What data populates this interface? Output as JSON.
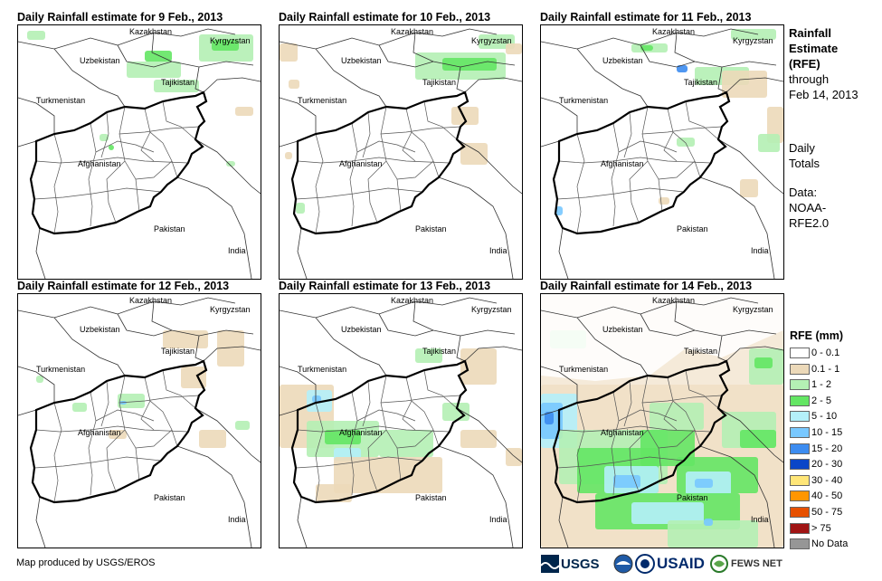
{
  "panels": [
    {
      "title": "Daily Rainfall estimate for 9 Feb., 2013",
      "labels": {
        "kazakhstan": "Kazakhstan",
        "kyrgyzstan": "Kyrgyzstan",
        "uzbekistan": "Uzbekistan",
        "tajikistan": "Tajikistan",
        "turkmenistan": "Turkmenistan",
        "afghanistan": "Afghanistan",
        "pakistan": "Pakistan",
        "india": "India"
      }
    },
    {
      "title": "Daily Rainfall estimate for 10 Feb., 2013",
      "labels": {
        "kazakhstan": "Kazakhstan",
        "kyrgyzstan": "Kyrgyzstan",
        "uzbekistan": "Uzbekistan",
        "tajikistan": "Tajikistan",
        "turkmenistan": "Turkmenistan",
        "afghanistan": "Afghanistan",
        "pakistan": "Pakistan",
        "india": "India"
      }
    },
    {
      "title": "Daily Rainfall estimate for 11 Feb., 2013",
      "labels": {
        "kazakhstan": "Kazakhstan",
        "kyrgyzstan": "Kyrgyzstan",
        "uzbekistan": "Uzbekistan",
        "tajikistan": "Tajikistan",
        "turkmenistan": "Turkmenistan",
        "afghanistan": "Afghanistan",
        "pakistan": "Pakistan",
        "india": "India"
      }
    },
    {
      "title": "Daily Rainfall estimate for 12 Feb., 2013",
      "labels": {
        "kazakhstan": "Kazakhstan",
        "kyrgyzstan": "Kyrgyzstan",
        "uzbekistan": "Uzbekistan",
        "tajikistan": "Tajikistan",
        "turkmenistan": "Turkmenistan",
        "afghanistan": "Afghanistan",
        "pakistan": "Pakistan",
        "india": "India"
      }
    },
    {
      "title": "Daily Rainfall estimate for 13 Feb., 2013",
      "labels": {
        "kazakhstan": "Kazakhstan",
        "kyrgyzstan": "Kyrgyzstan",
        "uzbekistan": "Uzbekistan",
        "tajikistan": "Tajikistan",
        "turkmenistan": "Turkmenistan",
        "afghanistan": "Afghanistan",
        "pakistan": "Pakistan",
        "india": "India"
      }
    },
    {
      "title": "Daily Rainfall estimate for 14 Feb., 2013",
      "labels": {
        "kazakhstan": "Kazakhstan",
        "kyrgyzstan": "Kyrgyzstan",
        "uzbekistan": "Uzbekistan",
        "tajikistan": "Tajikistan",
        "turkmenistan": "Turkmenistan",
        "afghanistan": "Afghanistan",
        "pakistan": "Pakistan",
        "india": "India"
      }
    }
  ],
  "side": {
    "heading1": "Rainfall",
    "heading2": "Estimate",
    "heading3": "(RFE)",
    "through": "through",
    "date": "Feb 14, 2013",
    "daily": "Daily",
    "totals": "Totals",
    "data_label": "Data:",
    "noaa": "NOAA-",
    "rfe2": "RFE2.0"
  },
  "legend": {
    "title": "RFE (mm)",
    "items": [
      {
        "label": "0 - 0.1",
        "color": "#ffffff"
      },
      {
        "label": "0.1 - 1",
        "color": "#ecd9b9"
      },
      {
        "label": "1 - 2",
        "color": "#b4f0b4"
      },
      {
        "label": "2 - 5",
        "color": "#64e664"
      },
      {
        "label": "5 - 10",
        "color": "#b4f0fa"
      },
      {
        "label": "10 - 15",
        "color": "#78c8ff"
      },
      {
        "label": "15 - 20",
        "color": "#3c8cf0"
      },
      {
        "label": "20 - 30",
        "color": "#0a46c8"
      },
      {
        "label": "30 - 40",
        "color": "#ffe678"
      },
      {
        "label": "40 - 50",
        "color": "#ff9600"
      },
      {
        "label": "50 - 75",
        "color": "#e65000"
      },
      {
        "label": "> 75",
        "color": "#a01414"
      },
      {
        "label": "No Data",
        "color": "#969696"
      }
    ]
  },
  "footer": {
    "credit": "Map produced by USGS/EROS"
  },
  "logos": {
    "usgs": "USGS",
    "usaid": "USAID",
    "fewsnet": "FEWS NET"
  }
}
